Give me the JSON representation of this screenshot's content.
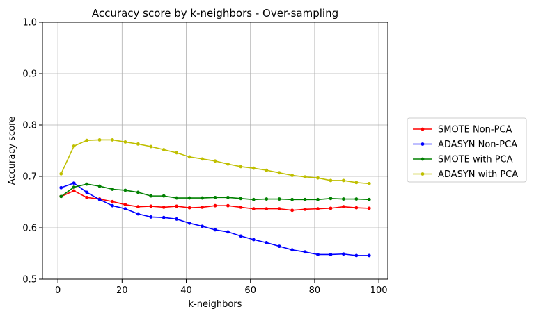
{
  "chart_data": {
    "type": "line",
    "title": "Accuracy score by k-neighbors - Over-sampling",
    "xlabel": "k-neighbors",
    "ylabel": "Accuracy score",
    "xlim": [
      -4.8,
      102.8
    ],
    "ylim": [
      0.5,
      1.0
    ],
    "xticks": [
      0,
      20,
      40,
      60,
      80,
      100
    ],
    "xtick_labels": [
      "0",
      "20",
      "40",
      "60",
      "80",
      "100"
    ],
    "yticks": [
      0.5,
      0.6,
      0.7,
      0.8,
      0.9,
      1.0
    ],
    "ytick_labels": [
      "0.5",
      "0.6",
      "0.7",
      "0.8",
      "0.9",
      "1.0"
    ],
    "grid": true,
    "legend_position": "outside-right",
    "x": [
      1,
      5,
      9,
      13,
      17,
      21,
      25,
      29,
      33,
      37,
      41,
      45,
      49,
      53,
      57,
      61,
      65,
      69,
      73,
      77,
      81,
      85,
      89,
      93,
      97
    ],
    "series": [
      {
        "name": "SMOTE Non-PCA",
        "color": "#ff0000",
        "values": [
          0.661,
          0.672,
          0.659,
          0.656,
          0.651,
          0.645,
          0.641,
          0.642,
          0.64,
          0.642,
          0.639,
          0.64,
          0.643,
          0.643,
          0.64,
          0.637,
          0.637,
          0.637,
          0.634,
          0.636,
          0.637,
          0.638,
          0.641,
          0.639,
          0.638
        ]
      },
      {
        "name": "ADASYN Non-PCA",
        "color": "#0000ff",
        "values": [
          0.678,
          0.687,
          0.669,
          0.655,
          0.643,
          0.637,
          0.627,
          0.621,
          0.62,
          0.617,
          0.609,
          0.603,
          0.596,
          0.592,
          0.584,
          0.577,
          0.571,
          0.564,
          0.557,
          0.553,
          0.548,
          0.548,
          0.549,
          0.546,
          0.546
        ]
      },
      {
        "name": "SMOTE with PCA",
        "color": "#008000",
        "values": [
          0.661,
          0.679,
          0.685,
          0.681,
          0.675,
          0.673,
          0.669,
          0.662,
          0.662,
          0.658,
          0.658,
          0.658,
          0.659,
          0.659,
          0.657,
          0.655,
          0.656,
          0.656,
          0.655,
          0.655,
          0.655,
          0.657,
          0.656,
          0.656,
          0.655
        ]
      },
      {
        "name": "ADASYN with PCA",
        "color": "#bfbf00",
        "values": [
          0.705,
          0.759,
          0.77,
          0.771,
          0.771,
          0.767,
          0.763,
          0.758,
          0.752,
          0.746,
          0.738,
          0.734,
          0.73,
          0.724,
          0.719,
          0.716,
          0.712,
          0.707,
          0.702,
          0.699,
          0.697,
          0.692,
          0.692,
          0.688,
          0.686
        ]
      }
    ]
  }
}
